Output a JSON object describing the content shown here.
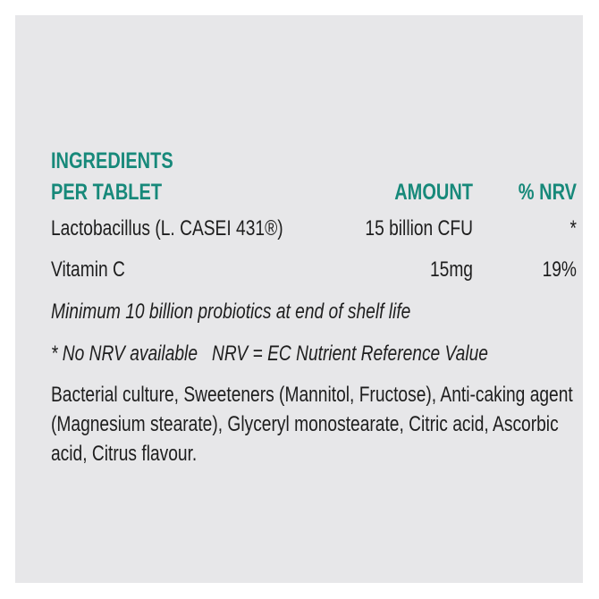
{
  "header": {
    "line1": "INGREDIENTS",
    "line2": "PER TABLET",
    "amount": "AMOUNT",
    "nrv": "% NRV"
  },
  "rows": [
    {
      "name": "Lactobacillus (L. CASEI 431®)",
      "amount": "15 billion CFU",
      "nrv": "*"
    },
    {
      "name": "Vitamin C",
      "amount": "15mg",
      "nrv": "19%"
    }
  ],
  "notes": [
    "Minimum 10 billion probiotics at end of shelf life",
    "* No NRV available   NRV = EC Nutrient Reference Value"
  ],
  "ingredients": "Bacterial culture, Sweeteners (Mannitol, Fructose), Anti-caking agent (Magnesium stearate), Glyceryl monostearate, Citric acid, Ascorbic acid, Citrus flavour.",
  "colors": {
    "accent": "#17897a",
    "panel": "#e7e7e9"
  }
}
